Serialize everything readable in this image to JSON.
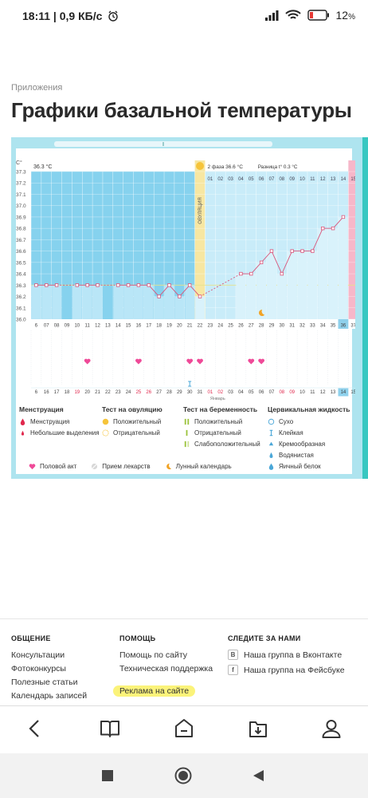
{
  "status": {
    "time_speed": "18:11 | 0,9 КБ/с",
    "battery_percent": "12",
    "battery_suffix": "%"
  },
  "breadcrumb": "Приложения",
  "page_title": "Графики базальной температуры",
  "chart_data": {
    "type": "line",
    "y_unit": "C°",
    "ylim": [
      36.0,
      37.3
    ],
    "y_ticks": [
      "37.3",
      "37.2",
      "37.1",
      "37.0",
      "36.9",
      "36.8",
      "36.7",
      "36.6",
      "36.5",
      "36.4",
      "36.3",
      "36.2",
      "36.1",
      "36.0"
    ],
    "phase1_label": "36.3 °C",
    "phase2_label": "2 фаза 36.6 °C",
    "diff_label": "Разница t° 0.3 °C",
    "ovulation_label": "ОВУЛЯЦИЯ",
    "cycle_days": [
      "6",
      "07",
      "08",
      "09",
      "10",
      "11",
      "12",
      "13",
      "14",
      "15",
      "16",
      "17",
      "18",
      "19",
      "20",
      "21",
      "22",
      "23",
      "24",
      "25",
      "26",
      "27",
      "28",
      "29",
      "30",
      "31",
      "32",
      "33",
      "34",
      "35",
      "36",
      "37"
    ],
    "phase2_days": [
      "01",
      "02",
      "03",
      "04",
      "05",
      "06",
      "07",
      "08",
      "09",
      "10",
      "11",
      "12",
      "13",
      "14",
      "15"
    ],
    "dates": [
      "6",
      "16",
      "17",
      "18",
      "19",
      "20",
      "21",
      "22",
      "23",
      "24",
      "25",
      "26",
      "27",
      "28",
      "29",
      "30",
      "31",
      "01",
      "02",
      "03",
      "04",
      "05",
      "06",
      "07",
      "08",
      "09",
      "10",
      "11",
      "12",
      "13",
      "14",
      "15"
    ],
    "month_label": "Январь",
    "temperatures": [
      36.3,
      36.3,
      36.3,
      null,
      36.3,
      36.3,
      36.3,
      null,
      36.3,
      36.3,
      36.3,
      36.3,
      36.2,
      36.3,
      36.2,
      36.3,
      36.2,
      null,
      null,
      null,
      36.4,
      36.4,
      36.5,
      36.6,
      36.4,
      36.6,
      36.6,
      36.6,
      36.8,
      36.8,
      36.9,
      null
    ],
    "intercourse_days": [
      5,
      10,
      15,
      16,
      21,
      22
    ],
    "sticky_mucus_day": 15,
    "moon_day": 22,
    "highlighted_day": 30
  },
  "legend": {
    "menstruation": {
      "title": "Менструация",
      "items": [
        "Менструация",
        "Небольшие выделения"
      ]
    },
    "ovulation_test": {
      "title": "Тест на овуляцию",
      "items": [
        "Положительный",
        "Отрицательный"
      ]
    },
    "pregnancy_test": {
      "title": "Тест на беременность",
      "items": [
        "Положительный",
        "Отрицательный",
        "Слабоположительный"
      ]
    },
    "cervical_fluid": {
      "title": "Цервикальная жидкость",
      "items": [
        "Сухо",
        "Клейкая",
        "Кремообразная",
        "Водянистая",
        "Яичный белок"
      ]
    },
    "extra": [
      "Половой акт",
      "Прием лекарств",
      "Лунный календарь"
    ]
  },
  "footer": {
    "community": {
      "title": "ОБЩЕНИЕ",
      "links": [
        "Консультации",
        "Фотоконкурсы",
        "Полезные статьи",
        "Календарь записей"
      ]
    },
    "help": {
      "title": "ПОМОЩЬ",
      "links": [
        "Помощь по сайту",
        "Техническая поддержка",
        "Реклама на сайте"
      ]
    },
    "follow": {
      "title": "СЛЕДИТЕ ЗА НАМИ",
      "links": [
        "Наша группа в Вконтакте",
        "Наша группа на Фейсбуке"
      ],
      "badges": [
        "В",
        "f"
      ]
    }
  },
  "colors": {
    "phase1_fill": "#86d2ee",
    "phase2_fill": "#c9ecf9",
    "line": "#d9557a",
    "ovulation": "#f7e7a2",
    "accent": "#38c7c1",
    "heart": "#ef4a98"
  }
}
